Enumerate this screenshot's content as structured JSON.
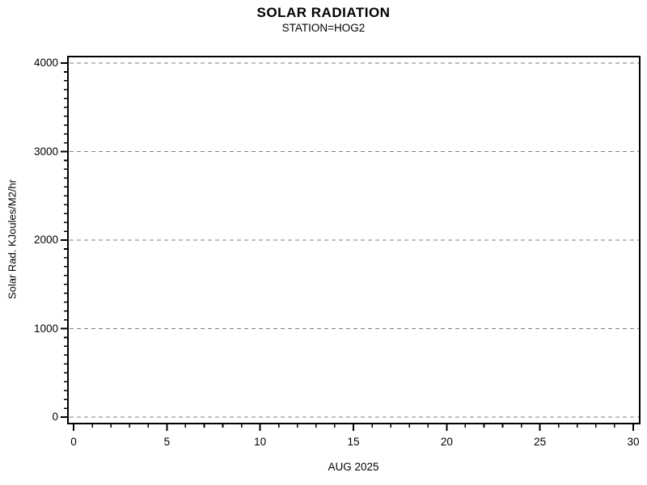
{
  "page": {
    "background_color": "#ffffff",
    "text_color": "#000000"
  },
  "chart_data": {
    "type": "line",
    "title": "SOLAR RADIATION",
    "subtitle": "STATION=HOG2",
    "xlabel": "AUG 2025",
    "ylabel": "Solar Rad. KJoules/M2/hr",
    "xlim": [
      0,
      30
    ],
    "ylim": [
      0,
      4000
    ],
    "x_major_ticks": [
      0,
      5,
      10,
      15,
      20,
      25,
      30
    ],
    "y_major_ticks": [
      0,
      1000,
      2000,
      3000,
      4000
    ],
    "x_minor_interval": 1,
    "y_minor_interval": 100,
    "grid": "horizontal",
    "gridline_style": "dashed",
    "gridline_color": "#808080",
    "frame_color": "#000000",
    "legend": "none",
    "series": []
  }
}
